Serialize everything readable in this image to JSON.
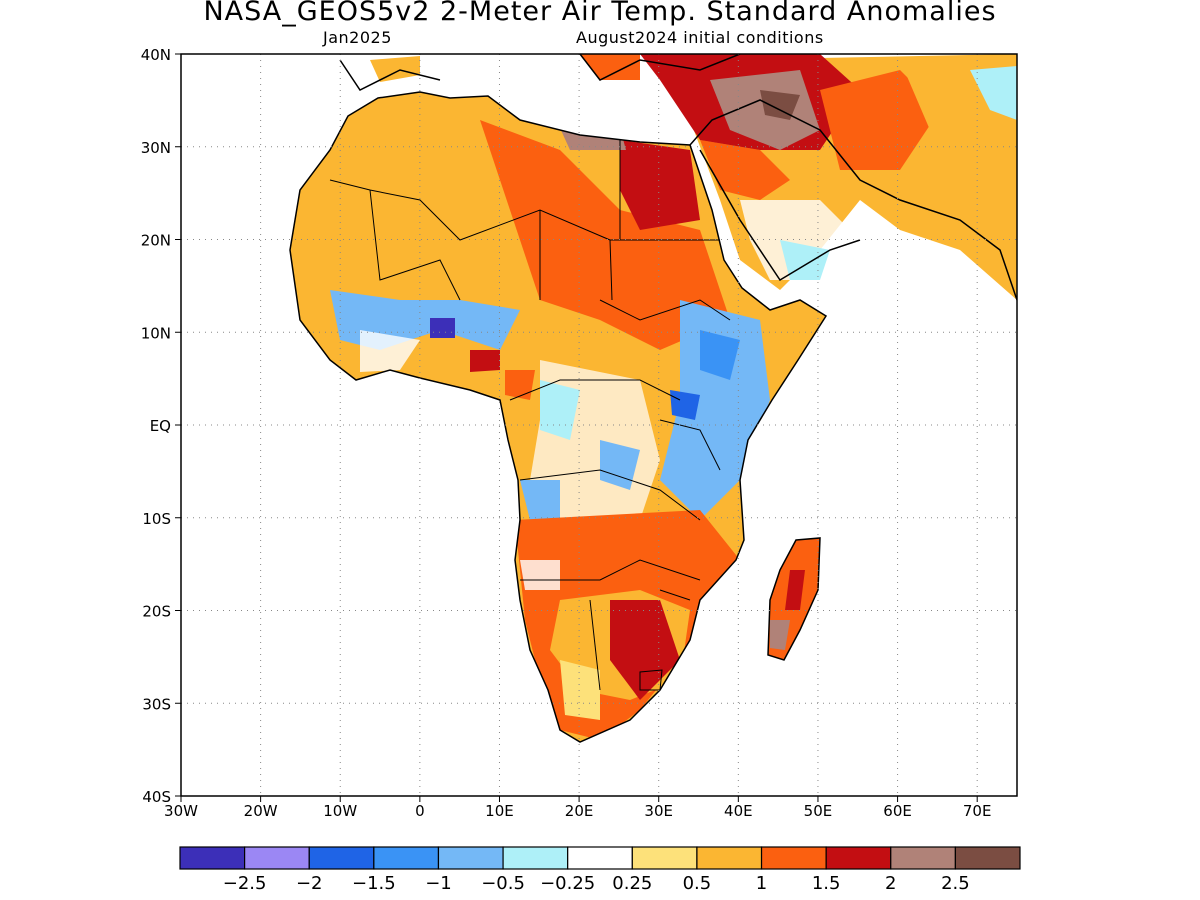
{
  "title": "NASA_GEOS5v2 2-Meter Air Temp. Standard Anomalies",
  "subtitle_left": "Jan2025",
  "subtitle_right": "August2024 initial conditions",
  "map": {
    "lon_range": [
      -30,
      75
    ],
    "lat_range": [
      -40,
      40
    ],
    "lon_ticks": [
      {
        "value": -30,
        "label": "30W"
      },
      {
        "value": -20,
        "label": "20W"
      },
      {
        "value": -10,
        "label": "10W"
      },
      {
        "value": 0,
        "label": "0"
      },
      {
        "value": 10,
        "label": "10E"
      },
      {
        "value": 20,
        "label": "20E"
      },
      {
        "value": 30,
        "label": "30E"
      },
      {
        "value": 40,
        "label": "40E"
      },
      {
        "value": 50,
        "label": "50E"
      },
      {
        "value": 60,
        "label": "60E"
      },
      {
        "value": 70,
        "label": "70E"
      }
    ],
    "lat_ticks": [
      {
        "value": 40,
        "label": "40N"
      },
      {
        "value": 30,
        "label": "30N"
      },
      {
        "value": 20,
        "label": "20N"
      },
      {
        "value": 10,
        "label": "10N"
      },
      {
        "value": 0,
        "label": "EQ"
      },
      {
        "value": -10,
        "label": "10S"
      },
      {
        "value": -20,
        "label": "20S"
      },
      {
        "value": -30,
        "label": "30S"
      },
      {
        "value": -40,
        "label": "40S"
      }
    ],
    "grid": "dotted"
  },
  "colorbar": {
    "colors": [
      "#3c2fb8",
      "#9b87f4",
      "#1f64e6",
      "#3a93f5",
      "#74b8f6",
      "#aef0f8",
      "#ffffff",
      "#fde17a",
      "#fbb632",
      "#fb6010",
      "#c30e12",
      "#b08278",
      "#7b4d42"
    ],
    "labels": [
      "-2.5",
      "-2",
      "-1.5",
      "-1",
      "-0.5",
      "-0.25",
      "0.25",
      "0.5",
      "1",
      "1.5",
      "2",
      "2.5"
    ]
  },
  "anomalies": [
    {
      "name": "sahara-west",
      "color": "#fbb632"
    },
    {
      "name": "sahara-east",
      "color": "#fb6010"
    },
    {
      "name": "egypt-sudan",
      "color": "#c30e12"
    },
    {
      "name": "middle-east",
      "color": "#b08278"
    },
    {
      "name": "west-africa",
      "color": "#74b8f6"
    },
    {
      "name": "east-africa",
      "color": "#74b8f6"
    },
    {
      "name": "southern-africa",
      "color": "#fb6010"
    },
    {
      "name": "madagascar",
      "color": "#fb6010"
    }
  ]
}
